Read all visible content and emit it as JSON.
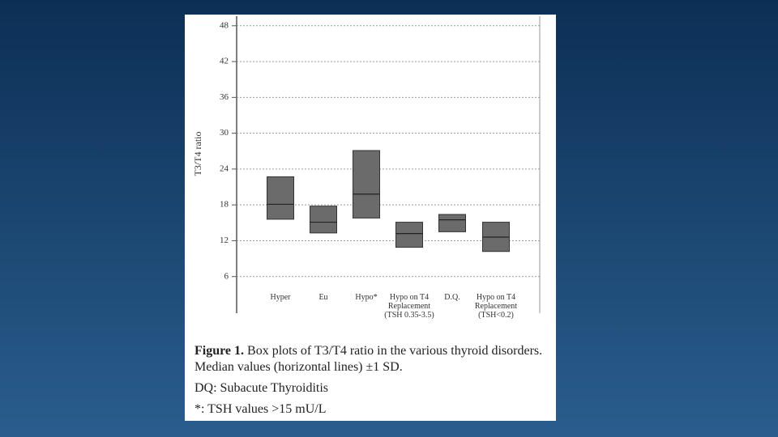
{
  "chart_data": {
    "type": "box",
    "y_label": "T3/T4 ratio",
    "categories": [
      "Hyper",
      "Eu",
      "Hypo*",
      "Hypo on T4 Replacement (TSH 0.35-3.5)",
      "D.Q.",
      "Hypo on T4 Replacement (TSH<0.2)"
    ],
    "high": [
      22.7,
      17.8,
      27.1,
      15.1,
      16.4,
      15.1
    ],
    "median": [
      18.1,
      15.1,
      19.8,
      13.2,
      15.5,
      12.6
    ],
    "low": [
      15.6,
      13.3,
      15.8,
      10.9,
      13.5,
      10.2
    ],
    "color": "#6b6b6b",
    "ylim": [
      0,
      49.6
    ],
    "yticks": [
      6,
      12,
      18,
      24,
      30,
      36,
      42,
      48
    ],
    "grid": true
  },
  "caption": {
    "label": "Figure 1.",
    "text": "Box plots of T3/T4 ratio in the various thyroid disorders. Median values (horizontal lines) ±1 SD.",
    "notes": [
      "DQ: Subacute Thyroiditis",
      "*: TSH values >15 mU/L"
    ]
  }
}
